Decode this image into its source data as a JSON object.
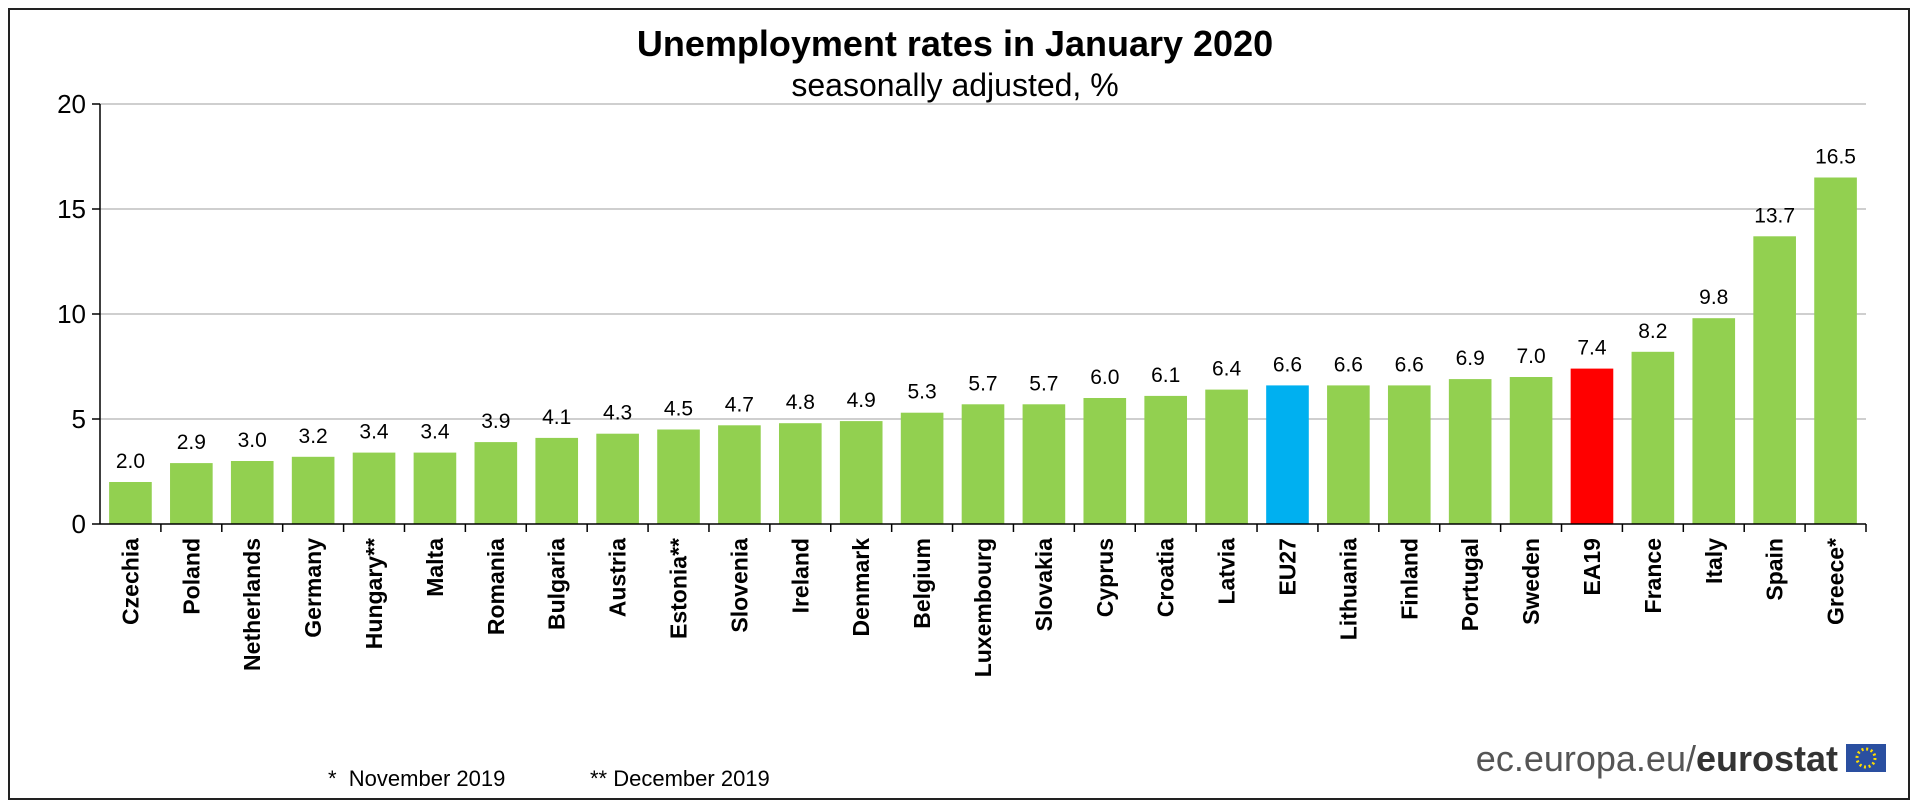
{
  "chart_data": {
    "type": "bar",
    "title": "Unemployment rates in January 2020",
    "subtitle": "seasonally adjusted, %",
    "xlabel": "",
    "ylabel": "",
    "ylim": [
      0,
      20
    ],
    "yticks": [
      0,
      5,
      10,
      15,
      20
    ],
    "grid": true,
    "categories": [
      "Czechia",
      "Poland",
      "Netherlands",
      "Germany",
      "Hungary**",
      "Malta",
      "Romania",
      "Bulgaria",
      "Austria",
      "Estonia**",
      "Slovenia",
      "Ireland",
      "Denmark",
      "Belgium",
      "Luxembourg",
      "Slovakia",
      "Cyprus",
      "Croatia",
      "Latvia",
      "EU27",
      "Lithuania",
      "Finland",
      "Portugal",
      "Sweden",
      "EA19",
      "France",
      "Italy",
      "Spain",
      "Greece*"
    ],
    "values": [
      2.0,
      2.9,
      3.0,
      3.2,
      3.4,
      3.4,
      3.9,
      4.1,
      4.3,
      4.5,
      4.7,
      4.8,
      4.9,
      5.3,
      5.7,
      5.7,
      6.0,
      6.1,
      6.4,
      6.6,
      6.6,
      6.6,
      6.9,
      7.0,
      7.4,
      8.2,
      9.8,
      13.7,
      16.5
    ],
    "value_labels": [
      "2.0",
      "2.9",
      "3.0",
      "3.2",
      "3.4",
      "3.4",
      "3.9",
      "4.1",
      "4.3",
      "4.5",
      "4.7",
      "4.8",
      "4.9",
      "5.3",
      "5.7",
      "5.7",
      "6.0",
      "6.1",
      "6.4",
      "6.6",
      "6.6",
      "6.6",
      "6.9",
      "7.0",
      "7.4",
      "8.2",
      "9.8",
      "13.7",
      "16.5"
    ],
    "colors": {
      "default": "#92d050",
      "highlight": {
        "EU27": "#00b0f0",
        "EA19": "#ff0000"
      },
      "grid": "#bfbfbf",
      "axis": "#000000"
    },
    "footnotes": [
      "*  November 2019",
      "** December 2019"
    ]
  },
  "source": {
    "prefix": "ec.europa.eu/",
    "brand": "eurostat",
    "icon": "eu-flag-icon"
  }
}
